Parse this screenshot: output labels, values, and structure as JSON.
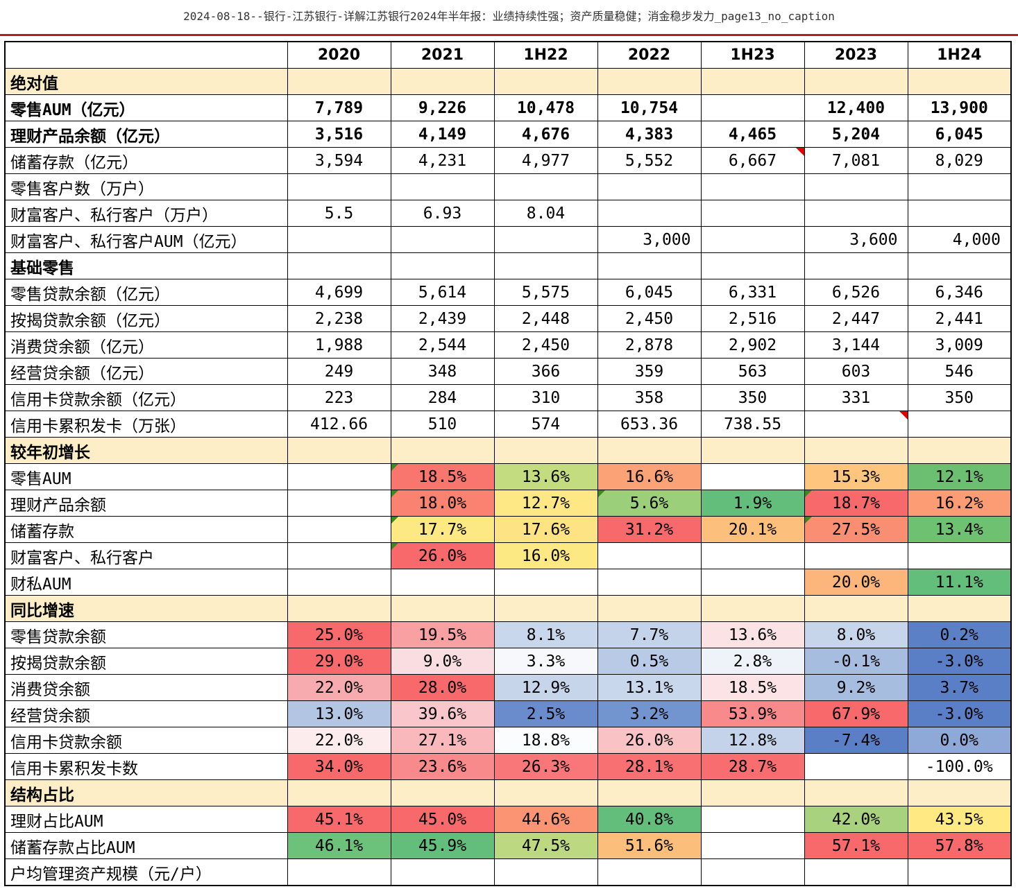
{
  "document_title": "2024-08-18--银行-江苏银行-详解江苏银行2024年半年报：业绩持续性强；资产质量稳健；消金稳步发力_page13_no_caption",
  "table": {
    "columns": [
      "",
      "2020",
      "2021",
      "1H22",
      "2022",
      "1H23",
      "2023",
      "1H24"
    ],
    "rows": [
      {
        "label": "绝对值",
        "type": "section",
        "cells": [
          "",
          "",
          "",
          "",
          "",
          "",
          ""
        ]
      },
      {
        "label": "零售AUM（亿元）",
        "type": "bold",
        "cells": [
          "7,789",
          "9,226",
          "10,478",
          "10,754",
          "",
          "12,400",
          "13,900"
        ]
      },
      {
        "label": "理财产品余额（亿元）",
        "type": "bold",
        "cells": [
          "3,516",
          "4,149",
          "4,676",
          "4,383",
          "4,465",
          "5,204",
          "6,045"
        ]
      },
      {
        "label": "储蓄存款（亿元）",
        "cells": [
          "3,594",
          "4,231",
          "4,977",
          "5,552",
          "6,667",
          "7,081",
          "8,029"
        ],
        "notes": [
          "",
          "",
          "",
          "",
          "r",
          "",
          ""
        ]
      },
      {
        "label": "零售客户数（万户）",
        "cells": [
          "",
          "",
          "",
          "",
          "",
          "",
          ""
        ]
      },
      {
        "label": "财富客户、私行客户（万户）",
        "cells": [
          "5.5",
          "6.93",
          "8.04",
          "",
          "",
          "",
          ""
        ]
      },
      {
        "label": "财富客户、私行客户AUM（亿元）",
        "cells": [
          "",
          "",
          "",
          "3,000",
          "",
          "3,600",
          "4,000"
        ],
        "align": "right"
      },
      {
        "label": "基础零售",
        "type": "bold",
        "cells": [
          "",
          "",
          "",
          "",
          "",
          "",
          ""
        ]
      },
      {
        "label": "零售贷款余额（亿元）",
        "cells": [
          "4,699",
          "5,614",
          "5,575",
          "6,045",
          "6,331",
          "6,526",
          "6,346"
        ]
      },
      {
        "label": "按揭贷款余额（亿元）",
        "cells": [
          "2,238",
          "2,439",
          "2,448",
          "2,450",
          "2,516",
          "2,447",
          "2,441"
        ]
      },
      {
        "label": "消费贷余额（亿元）",
        "cells": [
          "1,988",
          "2,544",
          "2,450",
          "2,878",
          "2,902",
          "3,144",
          "3,009"
        ]
      },
      {
        "label": "经营贷余额（亿元）",
        "cells": [
          "249",
          "348",
          "366",
          "359",
          "563",
          "603",
          "546"
        ]
      },
      {
        "label": "信用卡贷款余额（亿元）",
        "cells": [
          "223",
          "284",
          "310",
          "358",
          "350",
          "331",
          "350"
        ]
      },
      {
        "label": "信用卡累积发卡（万张）",
        "cells": [
          "412.66",
          "510",
          "574",
          "653.36",
          "738.55",
          "",
          ""
        ],
        "notes": [
          "",
          "",
          "",
          "",
          "",
          "r",
          ""
        ]
      },
      {
        "label": "较年初增长",
        "type": "section",
        "cells": [
          "",
          "",
          "",
          "",
          "",
          "",
          ""
        ]
      },
      {
        "label": "零售AUM",
        "cells": [
          "",
          "18.5%",
          "13.6%",
          "16.6%",
          "",
          "15.3%",
          "12.1%"
        ],
        "colors": [
          "",
          "#f8766d",
          "#c3dc7f",
          "#fba276",
          "",
          "#fdc57d",
          "#6cbf70"
        ],
        "notes": [
          "",
          "g",
          "",
          "",
          "",
          "",
          ""
        ]
      },
      {
        "label": "理财产品余额",
        "cells": [
          "",
          "18.0%",
          "12.7%",
          "5.6%",
          "1.9%",
          "18.7%",
          "16.2%"
        ],
        "colors": [
          "",
          "#f98370",
          "#fde885",
          "#9ccf79",
          "#63be7b",
          "#f8696b",
          "#fb9c75"
        ],
        "notes": [
          "",
          "g",
          "",
          "g",
          "",
          "g",
          ""
        ]
      },
      {
        "label": "储蓄存款",
        "cells": [
          "",
          "17.7%",
          "17.6%",
          "31.2%",
          "20.1%",
          "27.5%",
          "13.4%"
        ],
        "colors": [
          "",
          "#fce984",
          "#fde383",
          "#f8696b",
          "#fdc07c",
          "#f98e72",
          "#6ec170"
        ],
        "notes": [
          "",
          "g",
          "",
          "",
          "",
          "g",
          ""
        ]
      },
      {
        "label": "财富客户、私行客户",
        "cells": [
          "",
          "26.0%",
          "16.0%",
          "",
          "",
          "",
          ""
        ],
        "colors": [
          "",
          "#f8696b",
          "#fde984",
          "",
          "",
          "",
          ""
        ],
        "notes": [
          "",
          "g",
          "",
          "",
          "",
          "",
          ""
        ]
      },
      {
        "label": "财私AUM",
        "cells": [
          "",
          "",
          "",
          "",
          "",
          "20.0%",
          "11.1%"
        ],
        "colors": [
          "",
          "",
          "",
          "",
          "",
          "#fcb57a",
          "#63be7b"
        ]
      },
      {
        "label": "同比增速",
        "type": "section",
        "cells": [
          "",
          "",
          "",
          "",
          "",
          "",
          ""
        ]
      },
      {
        "label": "零售贷款余额",
        "cells": [
          "25.0%",
          "19.5%",
          "8.1%",
          "7.7%",
          "13.6%",
          "8.0%",
          "0.2%"
        ],
        "colors": [
          "#f8696b",
          "#f9a0a2",
          "#c9d7ec",
          "#c4d3ea",
          "#fbe3e5",
          "#c7d5eb",
          "#5b80c6"
        ]
      },
      {
        "label": "按揭贷款余额",
        "cells": [
          "29.0%",
          "9.0%",
          "3.3%",
          "0.5%",
          "2.8%",
          "-0.1%",
          "-3.0%"
        ],
        "colors": [
          "#f8696b",
          "#fadde1",
          "#f7f8fb",
          "#b8cae6",
          "#eef2f9",
          "#a7bde0",
          "#5a7fc6"
        ]
      },
      {
        "label": "消费贷余额",
        "cells": [
          "22.0%",
          "28.0%",
          "12.9%",
          "13.1%",
          "18.5%",
          "9.2%",
          "3.7%"
        ],
        "colors": [
          "#f8abae",
          "#f8696b",
          "#c7d5eb",
          "#c9d7ec",
          "#fbe3e6",
          "#a7bde0",
          "#5a7fc6"
        ]
      },
      {
        "label": "经营贷余额",
        "cells": [
          "13.0%",
          "39.6%",
          "2.5%",
          "3.2%",
          "53.9%",
          "67.9%",
          "-3.0%"
        ],
        "colors": [
          "#b2c6e4",
          "#f9c7cb",
          "#6b8ccc",
          "#7294cf",
          "#f98a8c",
          "#f8696b",
          "#5a7fc6"
        ]
      },
      {
        "label": "信用卡贷款余额",
        "cells": [
          "22.0%",
          "27.1%",
          "18.8%",
          "26.0%",
          "12.8%",
          "-7.4%",
          "0.0%"
        ],
        "colors": [
          "#fcecee",
          "#f9b9bc",
          "#fbfcfe",
          "#f9c3c6",
          "#c4d3ea",
          "#5a7fc6",
          "#8ea8d7"
        ]
      },
      {
        "label": "信用卡累积发卡数",
        "cells": [
          "34.0%",
          "23.6%",
          "26.3%",
          "28.1%",
          "28.7%",
          "",
          "-100.0%"
        ],
        "colors": [
          "#f8696b",
          "#f98a8c",
          "#f97779",
          "#f87072",
          "#f86d6f",
          "",
          ""
        ]
      },
      {
        "label": "结构占比",
        "type": "section",
        "cells": [
          "",
          "",
          "",
          "",
          "",
          "",
          ""
        ]
      },
      {
        "label": "理财占比AUM",
        "cells": [
          "45.1%",
          "45.0%",
          "44.6%",
          "40.8%",
          "",
          "42.0%",
          "43.5%"
        ],
        "colors": [
          "#f8696b",
          "#f8696b",
          "#fb9473",
          "#63be7b",
          "",
          "#a9d27f",
          "#fee983"
        ]
      },
      {
        "label": "储蓄存款占比AUM",
        "cells": [
          "46.1%",
          "45.9%",
          "47.5%",
          "51.6%",
          "",
          "57.1%",
          "57.8%"
        ],
        "colors": [
          "#6cc17b",
          "#63be7b",
          "#bcd880",
          "#fcbf7b",
          "",
          "#f8696b",
          "#f8696b"
        ]
      },
      {
        "label": "户均管理资产规模（元/户）",
        "type": "last",
        "cells": [
          "",
          "",
          "",
          "",
          "",
          "",
          ""
        ]
      }
    ]
  }
}
